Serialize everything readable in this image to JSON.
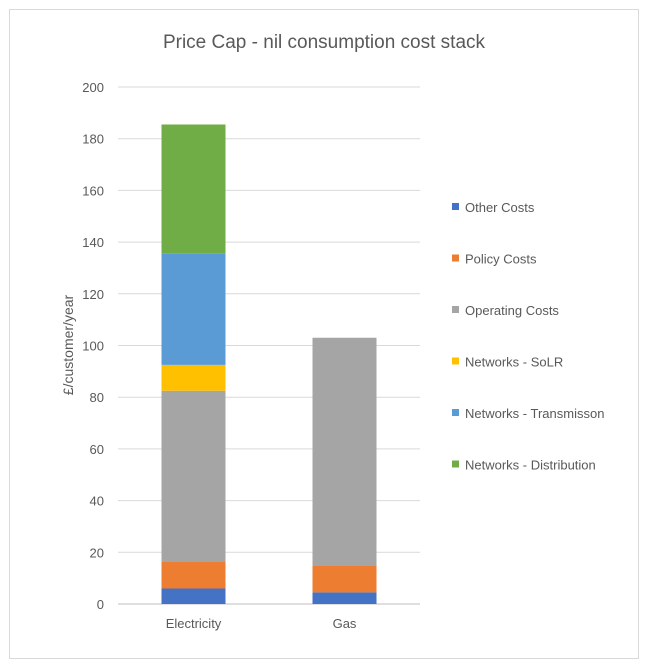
{
  "chart_data": {
    "type": "bar",
    "stacked": true,
    "title": "Price Cap - nil consumption cost stack",
    "xlabel": "",
    "ylabel": "£/customer/year",
    "categories": [
      "Electricity",
      "Gas"
    ],
    "ylim": [
      0,
      200
    ],
    "yticks": [
      0,
      20,
      40,
      60,
      80,
      100,
      120,
      140,
      160,
      180,
      200
    ],
    "grid": true,
    "legend_position": "right",
    "series": [
      {
        "name": "Other Costs",
        "color": "#4472C4",
        "values": [
          6,
          4.5
        ]
      },
      {
        "name": "Policy Costs",
        "color": "#ED7D31",
        "values": [
          10.5,
          10.5
        ]
      },
      {
        "name": "Operating Costs",
        "color": "#A5A5A5",
        "values": [
          66,
          88
        ]
      },
      {
        "name": "Networks - SoLR",
        "color": "#FFC000",
        "values": [
          10,
          0
        ]
      },
      {
        "name": "Networks - Transmisson",
        "color": "#5B9BD5",
        "values": [
          43,
          0
        ]
      },
      {
        "name": "Networks - Distribution",
        "color": "#70AD47",
        "values": [
          50,
          0
        ]
      }
    ]
  }
}
